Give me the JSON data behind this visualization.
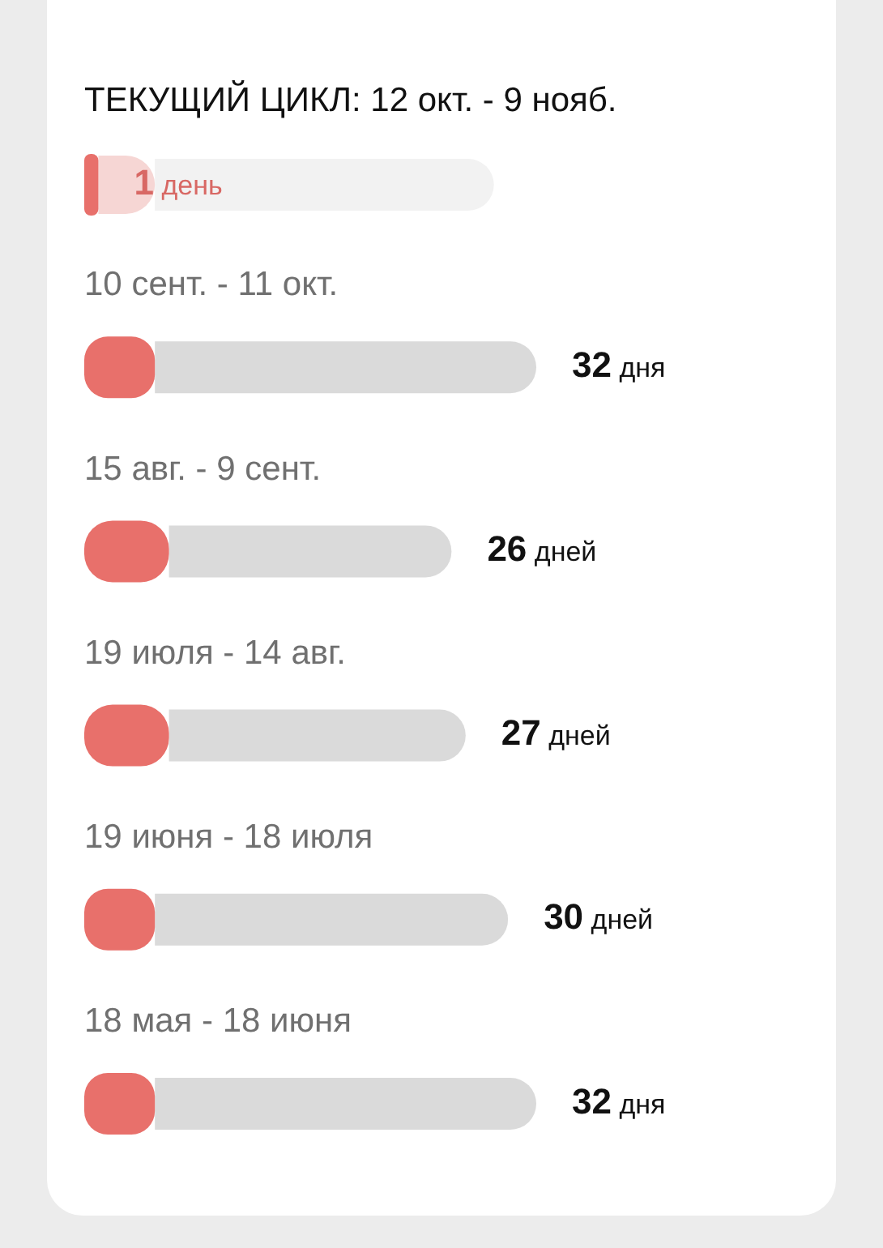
{
  "chart_data": {
    "type": "bar",
    "orientation": "horizontal",
    "stacked": true,
    "categories": [
      "ТЕКУЩИЙ ЦИКЛ: 12 окт. - 9 нояб.",
      "10 сент. - 11 окт.",
      "15 авг. - 9 сент.",
      "19 июля - 14 авг.",
      "19 июня - 18 июля",
      "18 мая - 18 июня"
    ],
    "series": [
      {
        "color": "#e8706b",
        "values": [
          1,
          5,
          6,
          6,
          5,
          5
        ],
        "value_labels": [
          "1 день",
          null,
          null,
          null,
          null,
          null
        ]
      },
      {
        "color": "#f6d6d4",
        "values": [
          4,
          null,
          null,
          null,
          null,
          null
        ]
      },
      {
        "color": "#dadada",
        "values": [
          null,
          27,
          20,
          21,
          25,
          27
        ]
      },
      {
        "color": "#f2f2f2",
        "values": [
          24,
          null,
          null,
          null,
          null,
          null
        ]
      }
    ],
    "totals": [
      null,
      "32 дня",
      "26 дней",
      "27 дней",
      "30 дней",
      "32 дня"
    ]
  }
}
